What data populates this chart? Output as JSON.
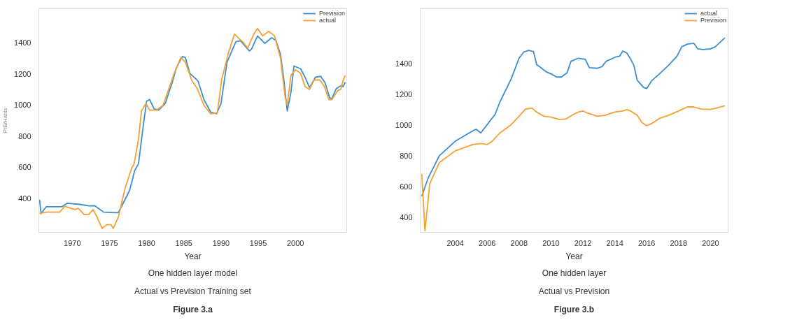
{
  "chart_data": [
    {
      "type": "line",
      "xlabel": "Year",
      "ylabel": "PIB/Habts",
      "annotations": [
        "One hidden layer model",
        "Actual vs Prevision Training set",
        "Figure 3.a"
      ],
      "xlim": [
        1965.5,
        2006.9
      ],
      "ylim": [
        180,
        1620
      ],
      "xticks": [
        1970,
        1975,
        1980,
        1985,
        1990,
        1995,
        2000
      ],
      "yticks": [
        400,
        600,
        800,
        1000,
        1200,
        1400
      ],
      "grid": false,
      "legend": "top right",
      "line_style": "solid",
      "marker": "none",
      "series": [
        {
          "name": "Prevision",
          "color": "#3b8fd0",
          "x": [
            1965.6,
            1965.8,
            1966.5,
            1968.6,
            1969.3,
            1971,
            1972.2,
            1973,
            1974.2,
            1975.8,
            1976.2,
            1977.7,
            1978.4,
            1978.9,
            1979.6,
            1980,
            1980.4,
            1981,
            1981.6,
            1982.5,
            1983.4,
            1984,
            1984.8,
            1985.2,
            1985.8,
            1986.5,
            1986.9,
            1987.7,
            1988.6,
            1989.4,
            1990,
            1990.8,
            1992,
            1992.6,
            1993.8,
            1994.1,
            1994.9,
            1995.9,
            1996.8,
            1997.4,
            1998,
            1998.5,
            1998.9,
            1999.4,
            1999.8,
            2000.7,
            2001.3,
            2001.9,
            2002.7,
            2003.4,
            2004,
            2004.6,
            2004.9,
            2005.5,
            2006.1,
            2006.4,
            2006.7
          ],
          "values": [
            390,
            300,
            345,
            345,
            367,
            360,
            350,
            352,
            310,
            307,
            307,
            449,
            579,
            621,
            888,
            1025,
            1035,
            975,
            967,
            1010,
            1140,
            1240,
            1312,
            1306,
            1204,
            1173,
            1155,
            1035,
            955,
            943,
            1010,
            1275,
            1408,
            1414,
            1348,
            1360,
            1445,
            1397,
            1433,
            1414,
            1324,
            1142,
            961,
            1082,
            1251,
            1233,
            1179,
            1112,
            1179,
            1185,
            1142,
            1046,
            1041,
            1106,
            1124,
            1118,
            1148
          ]
        },
        {
          "name": "actual",
          "color": "#f5a033",
          "x": [
            1965.6,
            1966.5,
            1968.3,
            1969,
            1969.8,
            1970.4,
            1970.8,
            1971.6,
            1972.2,
            1972.8,
            1973.4,
            1974,
            1974.6,
            1975.2,
            1975.5,
            1976.2,
            1977.1,
            1978,
            1978.3,
            1978.9,
            1979.3,
            1979.9,
            1980.4,
            1981.3,
            1982.2,
            1983.7,
            1984.6,
            1985.2,
            1986.1,
            1986.8,
            1987.7,
            1988.6,
            1989.5,
            1990.1,
            1991,
            1991.8,
            1992.3,
            1992.9,
            1993.6,
            1994.4,
            1994.9,
            1995.6,
            1996.4,
            1997.2,
            1998,
            1998.6,
            1998.9,
            1999.4,
            2000,
            2000.7,
            2001.3,
            2001.9,
            2002.5,
            2003.3,
            2003.9,
            2004.5,
            2004.9,
            2005.7,
            2006.1,
            2006.4,
            2006.7
          ],
          "values": [
            302,
            310,
            310,
            348,
            335,
            327,
            335,
            294,
            294,
            327,
            270,
            205,
            229,
            229,
            205,
            278,
            465,
            595,
            618,
            780,
            961,
            1010,
            967,
            967,
            998,
            1204,
            1306,
            1276,
            1155,
            1106,
            998,
            943,
            949,
            1167,
            1336,
            1457,
            1433,
            1408,
            1366,
            1457,
            1493,
            1445,
            1475,
            1445,
            1300,
            1058,
            998,
            1191,
            1227,
            1204,
            1118,
            1100,
            1161,
            1161,
            1118,
            1035,
            1035,
            1094,
            1100,
            1155,
            1191
          ]
        }
      ]
    },
    {
      "type": "line",
      "xlabel": "Year",
      "annotations": [
        "One hidden layer",
        "Actual vs Prevision",
        "Figure 3.b"
      ],
      "xlim": [
        2001.8,
        2021.1
      ],
      "ylim": [
        300,
        1760
      ],
      "xticks": [
        2004,
        2006,
        2008,
        2010,
        2012,
        2014,
        2016,
        2018,
        2020
      ],
      "yticks": [
        400,
        600,
        800,
        1000,
        1200,
        1400
      ],
      "grid": false,
      "legend": "top right",
      "line_style": "solid",
      "marker": "none",
      "series": [
        {
          "name": "actual",
          "color": "#3b8fd0",
          "x": [
            2001.9,
            2002.3,
            2003,
            2004,
            2005.1,
            2005.3,
            2005.6,
            2006,
            2006.5,
            2006.8,
            2007.5,
            2008,
            2008.3,
            2008.6,
            2008.9,
            2009.1,
            2009.7,
            2010,
            2010.35,
            2010.65,
            2011,
            2011.25,
            2011.7,
            2012.15,
            2012.4,
            2012.9,
            2013.2,
            2013.45,
            2014,
            2014.3,
            2014.5,
            2014.75,
            2015,
            2015.2,
            2015.4,
            2015.8,
            2016,
            2016.3,
            2016.8,
            2017.35,
            2017.9,
            2018.2,
            2018.55,
            2018.95,
            2019.2,
            2019.55,
            2020,
            2020.3,
            2020.9
          ],
          "values": [
            536,
            655,
            800,
            895,
            963,
            973,
            949,
            1003,
            1071,
            1152,
            1301,
            1437,
            1478,
            1488,
            1480,
            1396,
            1348,
            1335,
            1314,
            1314,
            1341,
            1416,
            1437,
            1430,
            1375,
            1371,
            1382,
            1416,
            1443,
            1450,
            1484,
            1471,
            1430,
            1389,
            1294,
            1246,
            1239,
            1288,
            1335,
            1389,
            1450,
            1512,
            1529,
            1535,
            1498,
            1494,
            1498,
            1512,
            1570
          ]
        },
        {
          "name": "Prevision",
          "color": "#f5a033",
          "x": [
            2001.9,
            2002.1,
            2002.4,
            2003,
            2004,
            2005.1,
            2005.6,
            2006,
            2006.3,
            2006.8,
            2007.5,
            2008,
            2008.4,
            2008.8,
            2009.1,
            2009.55,
            2010,
            2010.5,
            2010.95,
            2011.3,
            2011.7,
            2012,
            2012.3,
            2012.9,
            2013.35,
            2014,
            2014.5,
            2014.75,
            2015,
            2015.4,
            2015.7,
            2016,
            2016.3,
            2016.8,
            2017.35,
            2018,
            2018.55,
            2018.95,
            2019.4,
            2020,
            2020.9
          ],
          "values": [
            682,
            309,
            618,
            755,
            832,
            873,
            880,
            873,
            894,
            949,
            1003,
            1058,
            1105,
            1112,
            1085,
            1058,
            1052,
            1037,
            1040,
            1064,
            1085,
            1092,
            1078,
            1058,
            1064,
            1085,
            1092,
            1101,
            1092,
            1064,
            1016,
            996,
            1010,
            1044,
            1064,
            1092,
            1119,
            1119,
            1105,
            1102,
            1126
          ]
        }
      ]
    }
  ]
}
